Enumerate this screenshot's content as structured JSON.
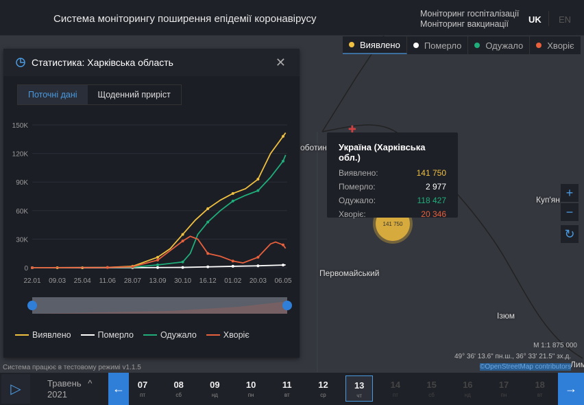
{
  "header": {
    "title": "Система моніторингу поширення епідемії коронавірусу",
    "links": [
      "Моніторинг госпіталізації",
      "Моніторинг вакцинації"
    ],
    "lang_uk": "UK",
    "lang_en": "EN"
  },
  "filters": [
    {
      "label": "Виявлено",
      "color": "#f0c040"
    },
    {
      "label": "Померло",
      "color": "#ffffff"
    },
    {
      "label": "Одужало",
      "color": "#1fae7a"
    },
    {
      "label": "Хворіє",
      "color": "#e8603c"
    }
  ],
  "map": {
    "cities": [
      "оботин",
      "Первомайський",
      "Куп'ян",
      "Ізюм",
      "Лим"
    ],
    "cluster": "141 750",
    "scale": "М 1:1 875 000",
    "coords": "49° 36' 13.6\" пн.ш., 36° 33' 21.5\" зх.д.",
    "osm": "©OpenStreetMap contributors",
    "zoom_in": "+",
    "zoom_out": "−"
  },
  "tooltip": {
    "title": "Україна (Харківська обл.)",
    "rows": [
      {
        "label": "Виявлено:",
        "value": "141 750",
        "color": "#f0c040"
      },
      {
        "label": "Померло:",
        "value": "2 977",
        "color": "#ffffff"
      },
      {
        "label": "Одужало:",
        "value": "118 427",
        "color": "#1fae7a"
      },
      {
        "label": "Хворіє:",
        "value": "20 346",
        "color": "#e8603c"
      }
    ]
  },
  "panel": {
    "title": "Статистика: Харківська область",
    "tabs": [
      "Поточні дані",
      "Щоденний приріст"
    ]
  },
  "chart_data": {
    "type": "line",
    "x_labels": [
      "22.01",
      "09.03",
      "25.04",
      "11.06",
      "28.07",
      "13.09",
      "30.10",
      "16.12",
      "01.02",
      "20.03",
      "06.05"
    ],
    "y_ticks": [
      "0",
      "30K",
      "60K",
      "90K",
      "120K",
      "150K"
    ],
    "ylim": [
      0,
      150000
    ],
    "series": [
      {
        "name": "Виявлено",
        "color": "#f0c040",
        "points": [
          [
            0,
            0
          ],
          [
            1,
            0
          ],
          [
            2,
            0
          ],
          [
            3,
            300
          ],
          [
            4,
            1500
          ],
          [
            5,
            11000
          ],
          [
            5.5,
            20000
          ],
          [
            6,
            35000
          ],
          [
            6.5,
            50000
          ],
          [
            7,
            62000
          ],
          [
            7.5,
            71000
          ],
          [
            8,
            78000
          ],
          [
            8.5,
            83000
          ],
          [
            9,
            93000
          ],
          [
            9.5,
            120000
          ],
          [
            10,
            138000
          ],
          [
            10.1,
            141750
          ]
        ]
      },
      {
        "name": "Померло",
        "color": "#ffffff",
        "points": [
          [
            0,
            0
          ],
          [
            4,
            0
          ],
          [
            5,
            200
          ],
          [
            6,
            300
          ],
          [
            7,
            900
          ],
          [
            8,
            1500
          ],
          [
            9,
            2000
          ],
          [
            10,
            2800
          ],
          [
            10.1,
            2977
          ]
        ]
      },
      {
        "name": "Одужало",
        "color": "#1fae7a",
        "points": [
          [
            0,
            0
          ],
          [
            4,
            500
          ],
          [
            5,
            3000
          ],
          [
            6,
            6000
          ],
          [
            6.3,
            15000
          ],
          [
            6.6,
            35000
          ],
          [
            7,
            48000
          ],
          [
            7.5,
            60000
          ],
          [
            8,
            70000
          ],
          [
            8.5,
            76000
          ],
          [
            9,
            81000
          ],
          [
            9.5,
            95000
          ],
          [
            10,
            112000
          ],
          [
            10.1,
            118427
          ]
        ]
      },
      {
        "name": "Хворіє",
        "color": "#e8603c",
        "points": [
          [
            0,
            0
          ],
          [
            3,
            300
          ],
          [
            4,
            1000
          ],
          [
            5,
            8000
          ],
          [
            5.5,
            18000
          ],
          [
            6,
            28000
          ],
          [
            6.3,
            33000
          ],
          [
            6.6,
            30000
          ],
          [
            7,
            15000
          ],
          [
            7.5,
            12000
          ],
          [
            8,
            7000
          ],
          [
            8.4,
            5000
          ],
          [
            9,
            11000
          ],
          [
            9.5,
            25000
          ],
          [
            9.7,
            27000
          ],
          [
            10,
            24000
          ],
          [
            10.1,
            20346
          ]
        ]
      }
    ]
  },
  "status": "Система працює в тестовому режимі v1.1.5",
  "datebar": {
    "month": "Травень",
    "year": "2021",
    "days": [
      {
        "n": "07",
        "w": "пт"
      },
      {
        "n": "08",
        "w": "сб"
      },
      {
        "n": "09",
        "w": "нд"
      },
      {
        "n": "10",
        "w": "пн"
      },
      {
        "n": "11",
        "w": "вт"
      },
      {
        "n": "12",
        "w": "ср"
      },
      {
        "n": "13",
        "w": "чт",
        "sel": true
      },
      {
        "n": "14",
        "w": "пт",
        "dim": true
      },
      {
        "n": "15",
        "w": "сб",
        "dim": true
      },
      {
        "n": "16",
        "w": "нд",
        "dim": true
      },
      {
        "n": "17",
        "w": "пн",
        "dim": true
      },
      {
        "n": "18",
        "w": "вт",
        "dim": true
      }
    ]
  }
}
